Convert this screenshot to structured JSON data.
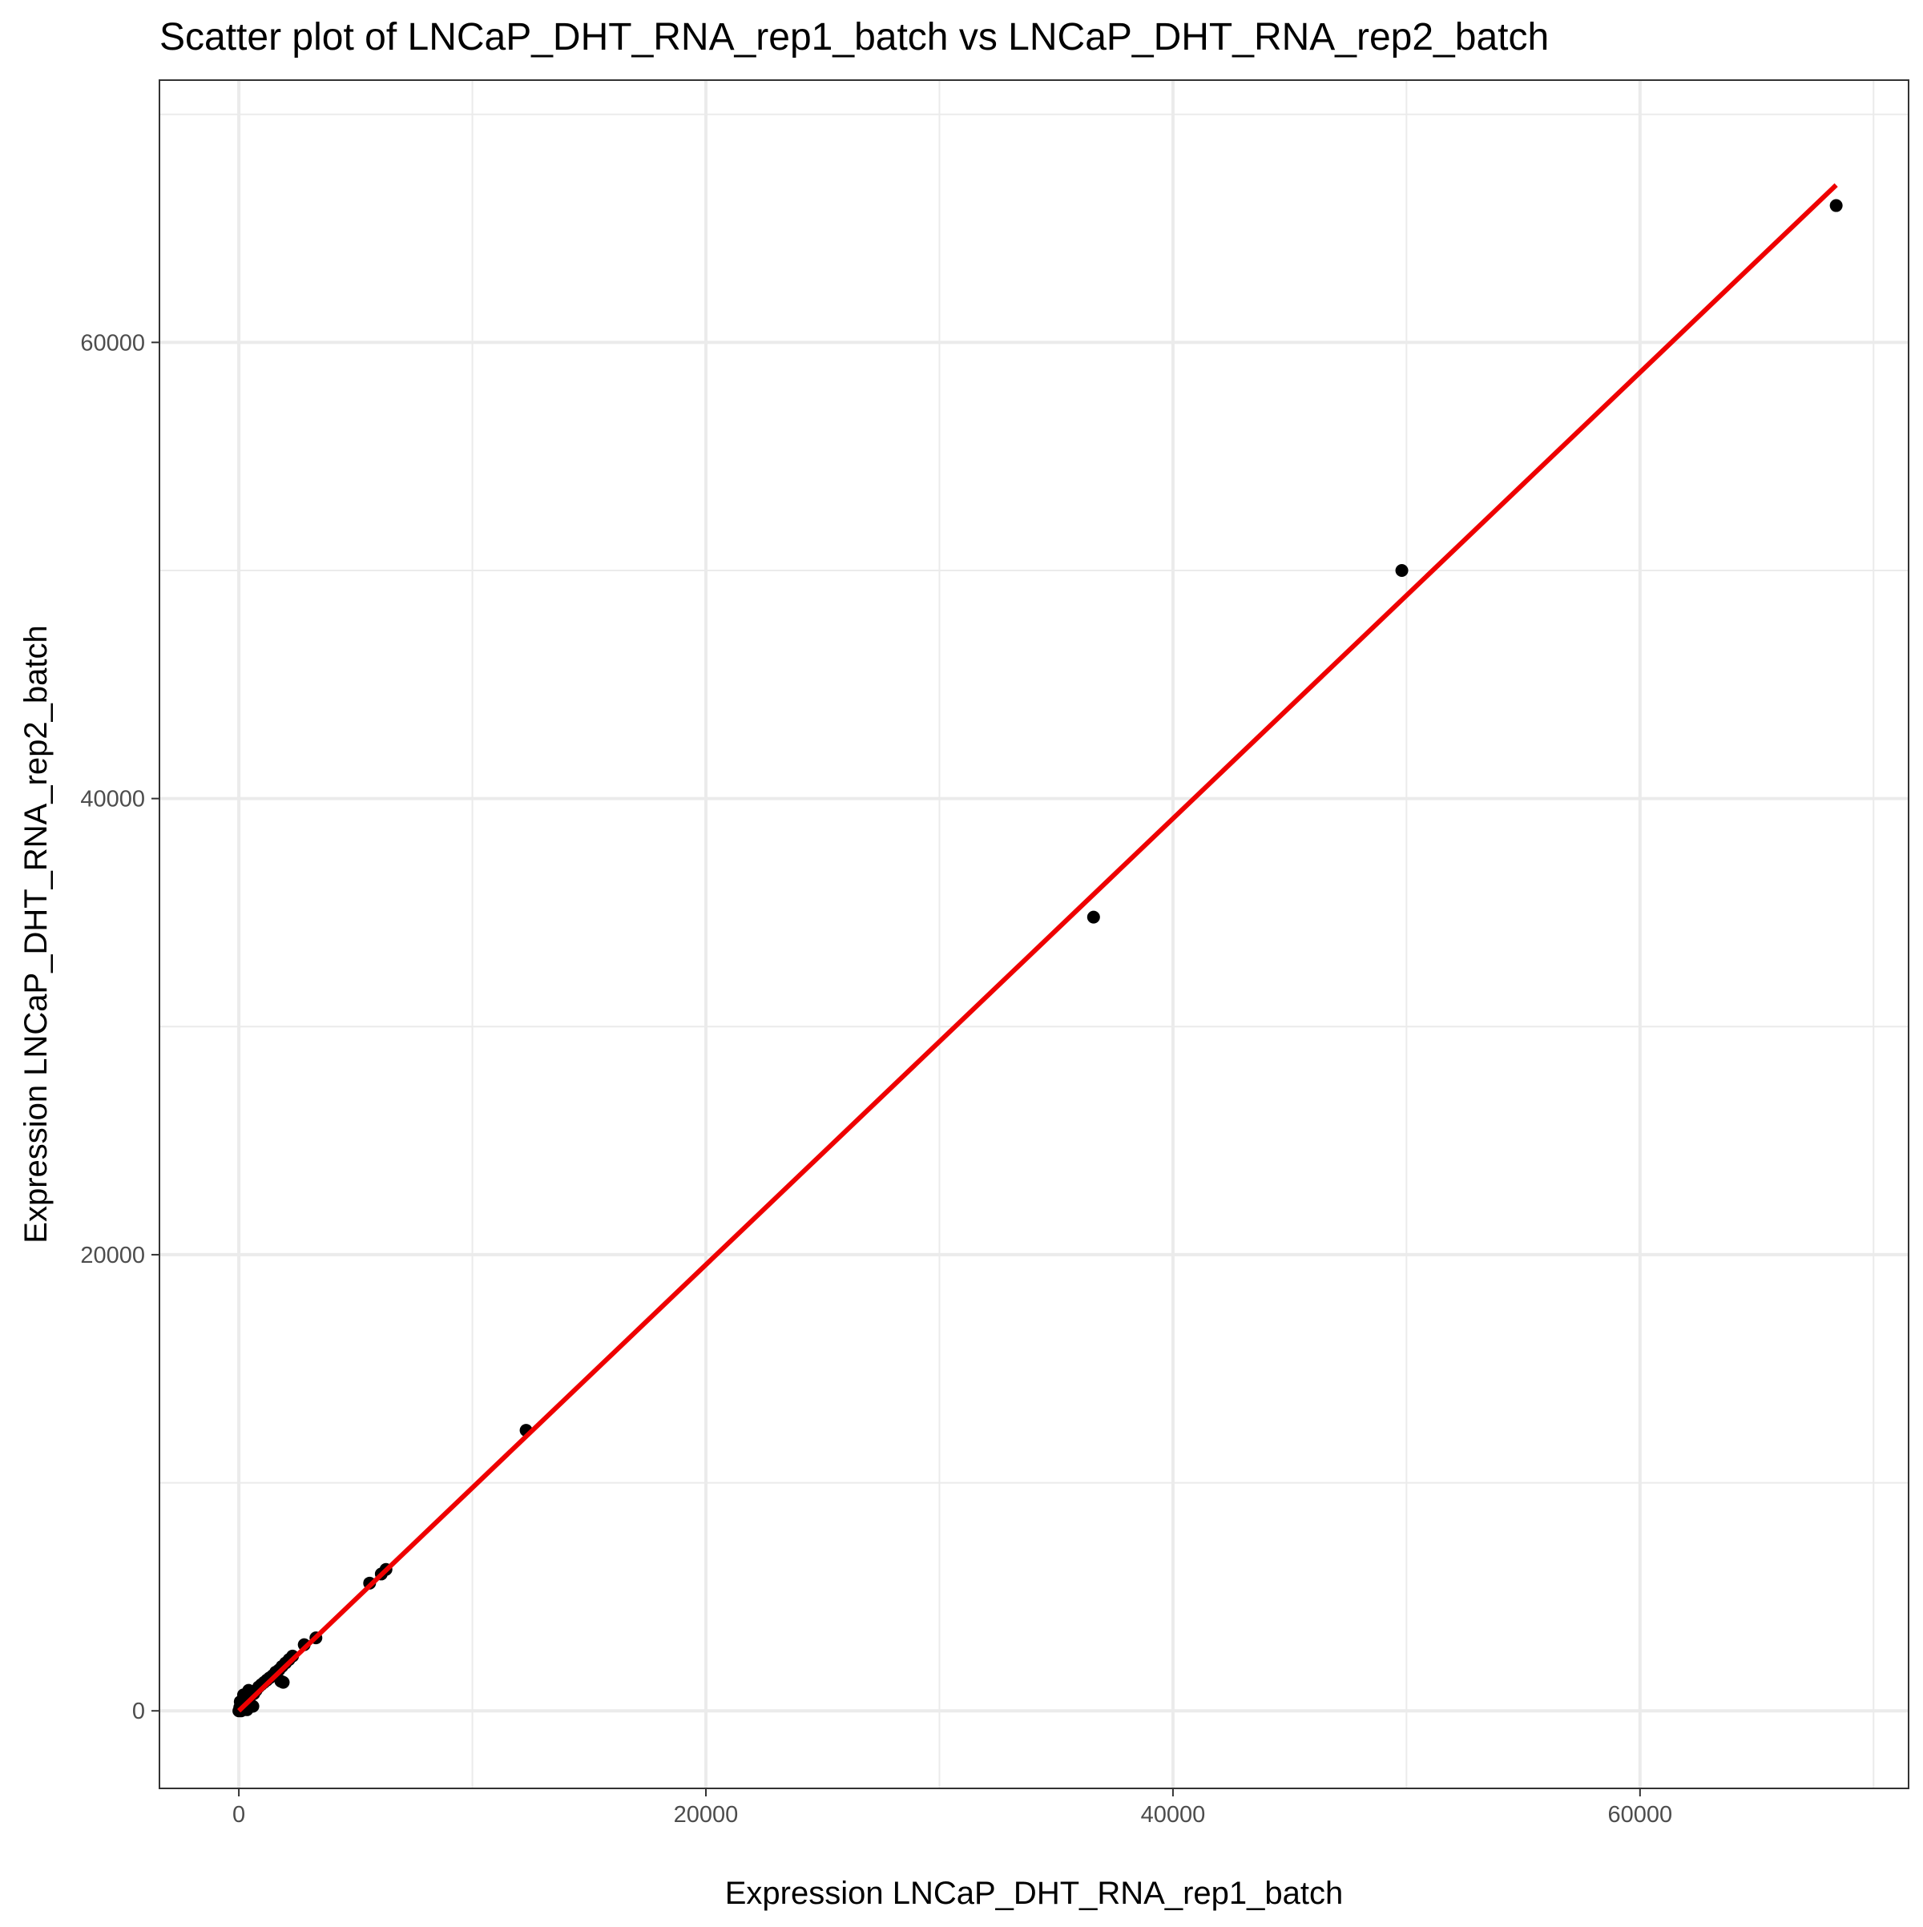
{
  "chart_data": {
    "type": "scatter",
    "title": "Scatter plot of LNCaP_DHT_RNA_rep1_batch vs LNCaP_DHT_RNA_rep2_batch",
    "xlabel": "Expression LNCaP_DHT_RNA_rep1_batch",
    "ylabel": "Expression LNCaP_DHT_RNA_rep2_batch",
    "xlim": [
      -3400,
      71500
    ],
    "ylim": [
      -3400,
      71500
    ],
    "x_ticks": [
      0,
      20000,
      40000,
      60000
    ],
    "y_ticks": [
      0,
      20000,
      40000,
      60000
    ],
    "x_tick_labels": [
      "0",
      "20000",
      "40000",
      "60000"
    ],
    "y_tick_labels": [
      "0",
      "20000",
      "40000",
      "60000"
    ],
    "grid": true,
    "theme": "black-and-white",
    "point_color": "#000000",
    "series": [
      {
        "x": [
          0,
          40,
          90,
          150,
          210,
          300,
          380,
          460,
          550,
          640,
          740,
          850,
          960,
          1080,
          1200,
          1320,
          1450,
          1580,
          1720,
          1850,
          2000,
          2150,
          2300,
          2800,
          3300,
          5600,
          6100,
          6300,
          12300,
          36600,
          49800,
          68400,
          100,
          200,
          350,
          420,
          600,
          1800,
          1900,
          60
        ],
        "y": [
          0,
          150,
          60,
          350,
          250,
          500,
          700,
          600,
          800,
          750,
          900,
          1050,
          1150,
          1250,
          1350,
          1450,
          1550,
          1700,
          1800,
          1950,
          2100,
          2250,
          2400,
          2900,
          3200,
          5600,
          6000,
          6200,
          12300,
          34800,
          50000,
          66000,
          0,
          700,
          50,
          900,
          200,
          1300,
          1250,
          400
        ]
      }
    ],
    "reference_line": {
      "color": "#ee0000",
      "x": [
        0,
        68400
      ],
      "y": [
        0,
        66900
      ]
    }
  }
}
